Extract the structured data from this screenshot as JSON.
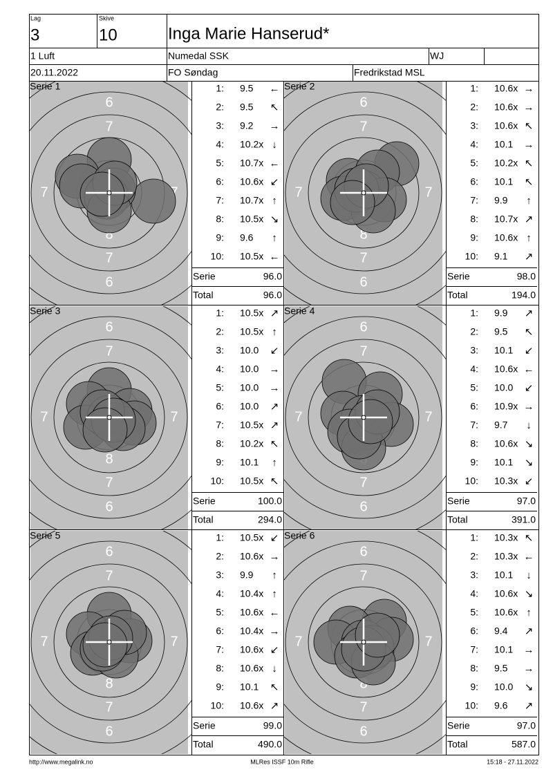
{
  "header": {
    "lag_label": "Lag",
    "lag": "3",
    "skive_label": "Skive",
    "skive": "10",
    "name": "Inga Marie Hanserud*",
    "class": "1 Luft",
    "club": "Numedal SSK",
    "category": "WJ",
    "date": "20.11.2022",
    "event": "FO Søndag",
    "venue": "Fredrikstad MSL"
  },
  "target_labels": [
    "6",
    "7",
    "8"
  ],
  "shot_numbers": [
    "1:",
    "2:",
    "3:",
    "4:",
    "5:",
    "6:",
    "7:",
    "8:",
    "9:",
    "10:"
  ],
  "serie_label": "Serie",
  "total_label": "Total",
  "series": [
    {
      "title": "Serie 1",
      "shots": [
        [
          "9.5",
          "←"
        ],
        [
          "9.5",
          "↖"
        ],
        [
          "9.2",
          "→"
        ],
        [
          "10.2x",
          "↓"
        ],
        [
          "10.7x",
          "←"
        ],
        [
          "10.6x",
          "↙"
        ],
        [
          "10.7x",
          "↑"
        ],
        [
          "10.5x",
          "↘"
        ],
        [
          "9.6",
          "↑"
        ],
        [
          "10.5x",
          "←"
        ]
      ],
      "serie": "96.0",
      "total": "96.0"
    },
    {
      "title": "Serie 2",
      "shots": [
        [
          "10.6x",
          "→"
        ],
        [
          "10.6x",
          "→"
        ],
        [
          "10.6x",
          "↖"
        ],
        [
          "10.1",
          "→"
        ],
        [
          "10.2x",
          "↖"
        ],
        [
          "10.1",
          "↖"
        ],
        [
          "9.9",
          "↑"
        ],
        [
          "10.7x",
          "↗"
        ],
        [
          "10.6x",
          "↑"
        ],
        [
          "9.1",
          "↗"
        ]
      ],
      "serie": "98.0",
      "total": "194.0"
    },
    {
      "title": "Serie 3",
      "shots": [
        [
          "10.5x",
          "↗"
        ],
        [
          "10.5x",
          "↑"
        ],
        [
          "10.0",
          "↙"
        ],
        [
          "10.0",
          "→"
        ],
        [
          "10.0",
          "→"
        ],
        [
          "10.0",
          "↗"
        ],
        [
          "10.5x",
          "↗"
        ],
        [
          "10.2x",
          "↖"
        ],
        [
          "10.1",
          "↑"
        ],
        [
          "10.5x",
          "↖"
        ]
      ],
      "serie": "100.0",
      "total": "294.0"
    },
    {
      "title": "Serie 4",
      "shots": [
        [
          "9.9",
          "↗"
        ],
        [
          "9.5",
          "↖"
        ],
        [
          "10.1",
          "↙"
        ],
        [
          "10.6x",
          "←"
        ],
        [
          "10.0",
          "↙"
        ],
        [
          "10.9x",
          "→"
        ],
        [
          "9.7",
          "↓"
        ],
        [
          "10.6x",
          "↘"
        ],
        [
          "10.1",
          "↘"
        ],
        [
          "10.3x",
          "↙"
        ]
      ],
      "serie": "97.0",
      "total": "391.0"
    },
    {
      "title": "Serie 5",
      "shots": [
        [
          "10.5x",
          "↙"
        ],
        [
          "10.6x",
          "→"
        ],
        [
          "9.9",
          "↑"
        ],
        [
          "10.4x",
          "↑"
        ],
        [
          "10.6x",
          "←"
        ],
        [
          "10.4x",
          "→"
        ],
        [
          "10.6x",
          "↙"
        ],
        [
          "10.6x",
          "↓"
        ],
        [
          "10.1",
          "↖"
        ],
        [
          "10.6x",
          "↗"
        ]
      ],
      "serie": "99.0",
      "total": "490.0"
    },
    {
      "title": "Serie 6",
      "shots": [
        [
          "10.3x",
          "↖"
        ],
        [
          "10.3x",
          "←"
        ],
        [
          "10.1",
          "↓"
        ],
        [
          "10.6x",
          "↘"
        ],
        [
          "10.6x",
          "↑"
        ],
        [
          "9.4",
          "↗"
        ],
        [
          "10.1",
          "→"
        ],
        [
          "9.5",
          "→"
        ],
        [
          "10.0",
          "↘"
        ],
        [
          "9.6",
          "↗"
        ]
      ],
      "serie": "97.0",
      "total": "587.0"
    }
  ],
  "footer": {
    "url": "http://www.megalink.no",
    "software": "MLRes ISSF 10m Rifle",
    "timestamp": "15:18 - 27.11.2022"
  }
}
